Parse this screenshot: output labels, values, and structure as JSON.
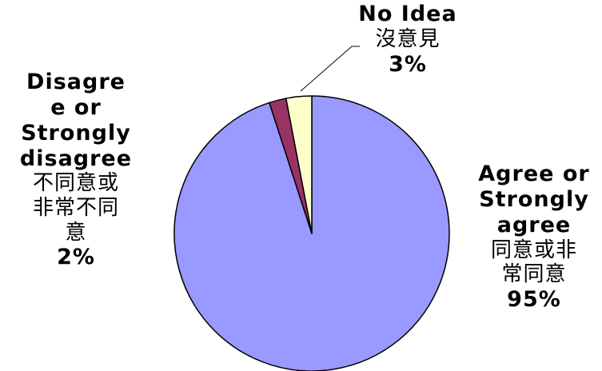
{
  "chart_data": {
    "type": "pie",
    "slices": [
      {
        "key": "agree",
        "value": 95,
        "color": "#9999ff",
        "label_lines_en": [
          "Agree or",
          "Strongly",
          "agree"
        ],
        "label_lines_zh": [
          "同意或非",
          "常同意"
        ],
        "percent_label": "95%"
      },
      {
        "key": "disagree",
        "value": 2,
        "color": "#993366",
        "label_lines_en": [
          "Disagre",
          "e or",
          "Strongly",
          "disagree"
        ],
        "label_lines_zh": [
          "不同意或",
          "非常不同",
          "意"
        ],
        "percent_label": "2%"
      },
      {
        "key": "noidea",
        "value": 3,
        "color": "#ffffcc",
        "label_lines_en": [
          "No Idea"
        ],
        "label_lines_zh": [
          "沒意見"
        ],
        "percent_label": "3%"
      }
    ],
    "start_angle_deg": 0,
    "direction": "clockwise",
    "legend": "none"
  }
}
